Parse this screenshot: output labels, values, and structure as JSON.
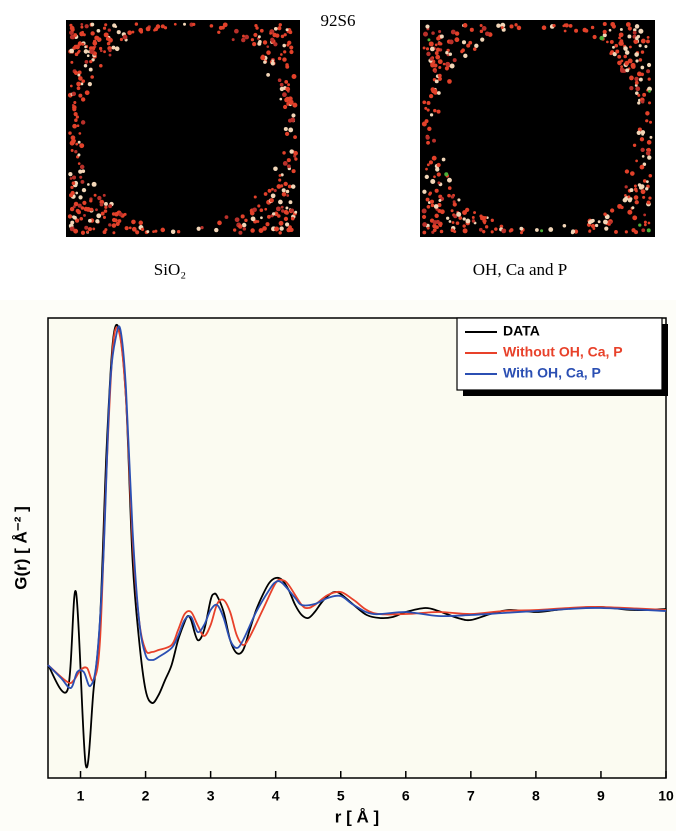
{
  "header": {
    "title": "92S6"
  },
  "images": [
    {
      "caption": "SiO₂"
    },
    {
      "caption": "OH, Ca and P"
    }
  ],
  "chart_data": {
    "type": "line",
    "xlabel": "r [ Å ]",
    "ylabel": "G(r) [ Å⁻² ]",
    "xlim": [
      0.5,
      10
    ],
    "xticks": [
      1,
      2,
      3,
      4,
      5,
      6,
      7,
      8,
      9,
      10
    ],
    "ylim": [
      -168,
      292
    ],
    "legend": "upper right",
    "series": [
      {
        "name": "DATA",
        "color": "#000000",
        "x": [
          0.5,
          0.8,
          0.93,
          1.08,
          1.2,
          1.3,
          1.4,
          1.5,
          1.6,
          1.7,
          1.8,
          1.9,
          2.0,
          2.1,
          2.2,
          2.3,
          2.4,
          2.5,
          2.6,
          2.65,
          2.7,
          2.8,
          2.9,
          3.0,
          3.05,
          3.1,
          3.2,
          3.3,
          3.4,
          3.5,
          3.6,
          3.7,
          3.8,
          3.9,
          4.0,
          4.1,
          4.2,
          4.3,
          4.4,
          4.5,
          4.6,
          4.7,
          4.8,
          4.9,
          5.0,
          5.2,
          5.4,
          5.6,
          5.8,
          6.0,
          6.3,
          6.5,
          6.8,
          7.0,
          7.3,
          7.6,
          8.0,
          8.3,
          8.6,
          9.0,
          9.5,
          10
        ],
        "values": [
          -55,
          -80,
          18,
          -155,
          -80,
          -10,
          160,
          270,
          278,
          210,
          50,
          -30,
          -80,
          -93,
          -85,
          -70,
          -55,
          -30,
          -12,
          -6,
          -10,
          -30,
          -20,
          10,
          16,
          14,
          -2,
          -30,
          -43,
          -40,
          -20,
          0,
          15,
          27,
          32,
          30,
          20,
          5,
          -5,
          -8,
          -2,
          7,
          14,
          18,
          16,
          5,
          -5,
          -8,
          -7,
          -2,
          2,
          -1,
          -8,
          -10,
          -4,
          0,
          -2,
          0,
          2,
          3,
          0,
          1
        ]
      },
      {
        "name": "Without OH, Ca, P",
        "color": "#e8412a",
        "x": [
          0.5,
          0.8,
          0.9,
          1.0,
          1.1,
          1.2,
          1.3,
          1.4,
          1.5,
          1.6,
          1.7,
          1.8,
          1.9,
          2.0,
          2.1,
          2.2,
          2.4,
          2.5,
          2.6,
          2.7,
          2.8,
          2.9,
          3.0,
          3.1,
          3.2,
          3.3,
          3.4,
          3.5,
          3.6,
          3.8,
          4.0,
          4.1,
          4.2,
          4.4,
          4.5,
          4.6,
          4.8,
          5.0,
          5.2,
          5.5,
          6.0,
          6.5,
          7.0,
          7.5,
          8.0,
          8.5,
          9.0,
          10
        ],
        "values": [
          -55,
          -72,
          -70,
          -60,
          -58,
          -70,
          -30,
          140,
          265,
          276,
          210,
          70,
          -10,
          -40,
          -42,
          -40,
          -35,
          -20,
          -4,
          -2,
          -15,
          -26,
          -15,
          6,
          10,
          -2,
          -25,
          -35,
          -27,
          0,
          27,
          30,
          25,
          5,
          2,
          5,
          15,
          18,
          10,
          -3,
          -4,
          -2,
          -4,
          -1,
          0,
          2,
          3,
          0
        ]
      },
      {
        "name": "With OH, Ca, P",
        "color": "#2b4fb3",
        "x": [
          0.5,
          0.7,
          0.85,
          0.95,
          1.05,
          1.15,
          1.25,
          1.35,
          1.45,
          1.55,
          1.62,
          1.7,
          1.8,
          1.9,
          2.0,
          2.1,
          2.2,
          2.4,
          2.5,
          2.6,
          2.7,
          2.8,
          2.9,
          3.0,
          3.1,
          3.2,
          3.3,
          3.4,
          3.5,
          3.7,
          3.9,
          4.0,
          4.1,
          4.3,
          4.4,
          4.6,
          4.8,
          5.0,
          5.2,
          5.5,
          6.0,
          6.5,
          7.0,
          7.5,
          8.0,
          8.5,
          9.0,
          10
        ],
        "values": [
          -55,
          -68,
          -78,
          -62,
          -62,
          -76,
          -50,
          50,
          220,
          275,
          278,
          220,
          80,
          -10,
          -45,
          -50,
          -47,
          -38,
          -26,
          -10,
          -7,
          -22,
          -15,
          0,
          5,
          -8,
          -30,
          -38,
          -30,
          -2,
          20,
          28,
          27,
          12,
          5,
          6,
          12,
          14,
          5,
          -4,
          -2,
          -6,
          -5,
          -3,
          -1,
          1,
          2,
          -1
        ]
      }
    ]
  }
}
